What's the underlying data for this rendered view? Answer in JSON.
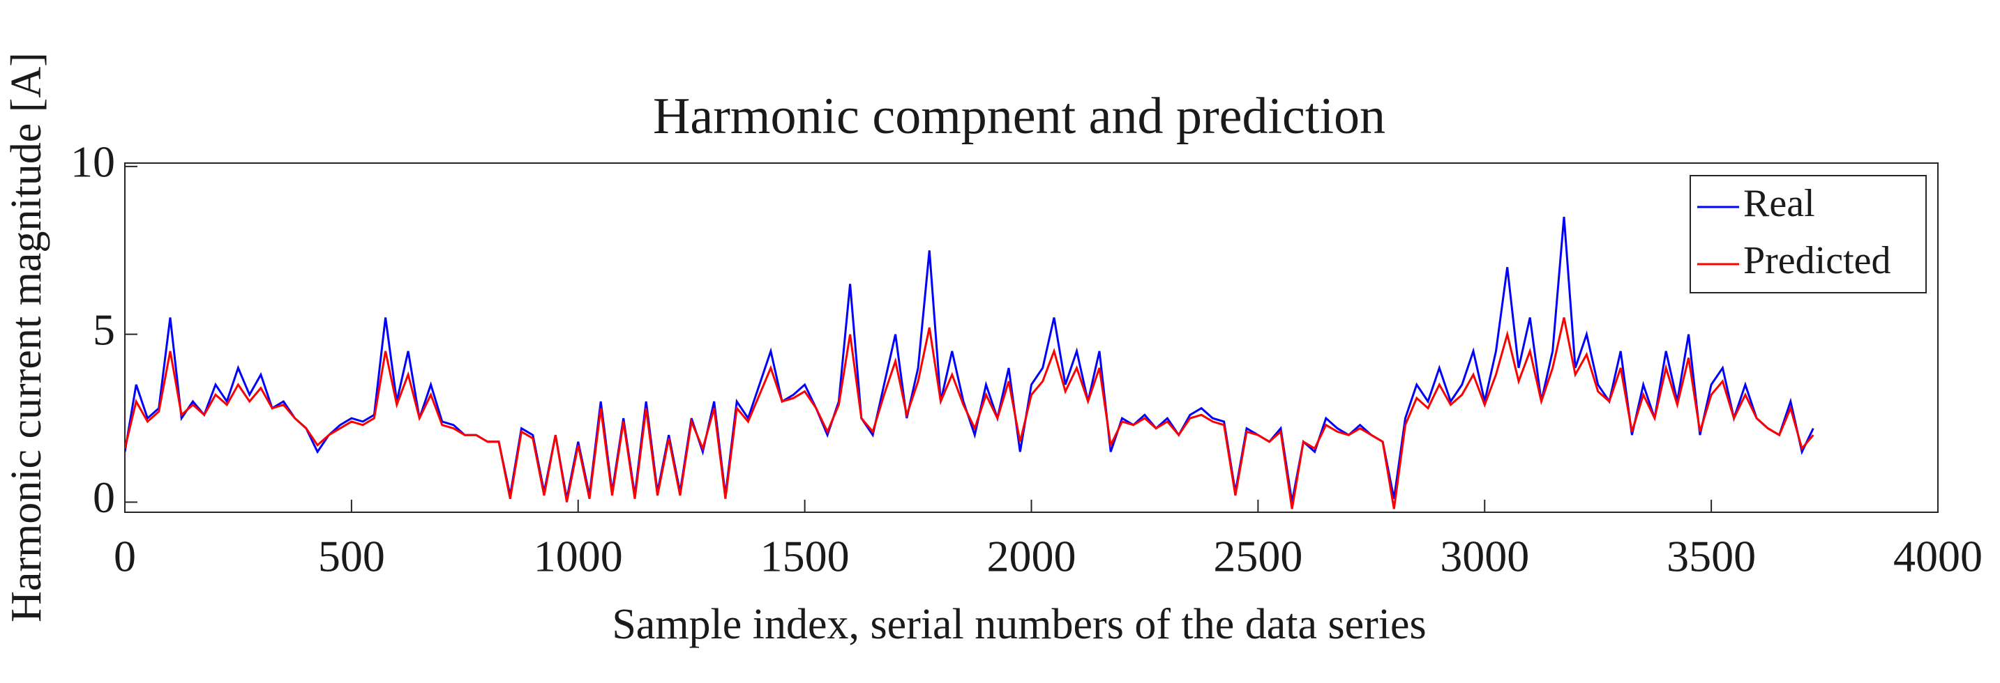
{
  "chart_data": {
    "type": "line",
    "title": "Harmonic compnent and prediction",
    "xlabel": "Sample index, serial numbers of the data series",
    "ylabel": "Harmonic current magnitude [A]",
    "x": [
      0,
      25,
      50,
      75,
      100,
      125,
      150,
      175,
      200,
      225,
      250,
      275,
      300,
      325,
      350,
      375,
      400,
      425,
      450,
      475,
      500,
      525,
      550,
      575,
      600,
      625,
      650,
      675,
      700,
      725,
      750,
      775,
      800,
      825,
      850,
      875,
      900,
      925,
      950,
      975,
      1000,
      1025,
      1050,
      1075,
      1100,
      1125,
      1150,
      1175,
      1200,
      1225,
      1250,
      1275,
      1300,
      1325,
      1350,
      1375,
      1400,
      1425,
      1450,
      1475,
      1500,
      1525,
      1550,
      1575,
      1600,
      1625,
      1650,
      1675,
      1700,
      1725,
      1750,
      1775,
      1800,
      1825,
      1850,
      1875,
      1900,
      1925,
      1950,
      1975,
      2000,
      2025,
      2050,
      2075,
      2100,
      2125,
      2150,
      2175,
      2200,
      2225,
      2250,
      2275,
      2300,
      2325,
      2350,
      2375,
      2400,
      2425,
      2450,
      2475,
      2500,
      2525,
      2550,
      2575,
      2600,
      2625,
      2650,
      2675,
      2700,
      2725,
      2750,
      2775,
      2800,
      2825,
      2850,
      2875,
      2900,
      2925,
      2950,
      2975,
      3000,
      3025,
      3050,
      3075,
      3100,
      3125,
      3150,
      3175,
      3200,
      3225,
      3250,
      3275,
      3300,
      3325,
      3350,
      3375,
      3400,
      3425,
      3450,
      3475,
      3500,
      3525,
      3550,
      3575,
      3600,
      3625,
      3650,
      3675,
      3700,
      3725
    ],
    "series": [
      {
        "name": "Real",
        "color": "#0000ff",
        "values": [
          1.5,
          3.5,
          2.5,
          2.8,
          5.5,
          2.5,
          3.0,
          2.6,
          3.5,
          3.0,
          4.0,
          3.2,
          3.8,
          2.8,
          3.0,
          2.5,
          2.2,
          1.5,
          2.0,
          2.3,
          2.5,
          2.4,
          2.6,
          5.5,
          3.0,
          4.5,
          2.5,
          3.5,
          2.4,
          2.3,
          2.0,
          2.0,
          1.8,
          1.8,
          0.2,
          2.2,
          2.0,
          0.3,
          2.0,
          0.1,
          1.8,
          0.2,
          3.0,
          0.3,
          2.5,
          0.2,
          3.0,
          0.3,
          2.0,
          0.3,
          2.5,
          1.5,
          3.0,
          0.2,
          3.0,
          2.5,
          3.5,
          4.5,
          3.0,
          3.2,
          3.5,
          2.8,
          2.0,
          3.0,
          6.5,
          2.5,
          2.0,
          3.5,
          5.0,
          2.5,
          4.0,
          7.5,
          3.0,
          4.5,
          3.0,
          2.0,
          3.5,
          2.5,
          4.0,
          1.5,
          3.5,
          4.0,
          5.5,
          3.5,
          4.5,
          3.0,
          4.5,
          1.5,
          2.5,
          2.3,
          2.6,
          2.2,
          2.5,
          2.0,
          2.6,
          2.8,
          2.5,
          2.4,
          0.3,
          2.2,
          2.0,
          1.8,
          2.2,
          0.0,
          1.8,
          1.5,
          2.5,
          2.2,
          2.0,
          2.3,
          2.0,
          1.8,
          0.1,
          2.5,
          3.5,
          3.0,
          4.0,
          3.0,
          3.5,
          4.5,
          3.0,
          4.5,
          7.0,
          4.0,
          5.5,
          3.0,
          4.5,
          8.5,
          4.0,
          5.0,
          3.5,
          3.0,
          4.5,
          2.0,
          3.5,
          2.5,
          4.5,
          3.0,
          5.0,
          2.0,
          3.5,
          4.0,
          2.5,
          3.5,
          2.5,
          2.2,
          2.0,
          3.0,
          1.5,
          2.2
        ]
      },
      {
        "name": "Predicted",
        "color": "#ff0000",
        "values": [
          1.6,
          3.0,
          2.4,
          2.7,
          4.5,
          2.6,
          2.9,
          2.6,
          3.2,
          2.9,
          3.5,
          3.0,
          3.4,
          2.8,
          2.9,
          2.5,
          2.2,
          1.7,
          2.0,
          2.2,
          2.4,
          2.3,
          2.5,
          4.5,
          2.9,
          3.8,
          2.5,
          3.2,
          2.3,
          2.2,
          2.0,
          2.0,
          1.8,
          1.8,
          0.1,
          2.1,
          1.9,
          0.2,
          2.0,
          0.0,
          1.7,
          0.1,
          2.8,
          0.2,
          2.4,
          0.1,
          2.8,
          0.2,
          1.9,
          0.2,
          2.4,
          1.6,
          2.8,
          0.1,
          2.8,
          2.4,
          3.2,
          4.0,
          3.0,
          3.1,
          3.3,
          2.8,
          2.1,
          2.9,
          5.0,
          2.5,
          2.1,
          3.2,
          4.2,
          2.6,
          3.6,
          5.2,
          3.0,
          3.8,
          2.9,
          2.2,
          3.2,
          2.5,
          3.6,
          1.8,
          3.2,
          3.6,
          4.5,
          3.3,
          4.0,
          3.0,
          4.0,
          1.7,
          2.4,
          2.3,
          2.5,
          2.2,
          2.4,
          2.0,
          2.5,
          2.6,
          2.4,
          2.3,
          0.2,
          2.1,
          2.0,
          1.8,
          2.1,
          -0.2,
          1.8,
          1.6,
          2.3,
          2.1,
          2.0,
          2.2,
          2.0,
          1.8,
          -0.2,
          2.3,
          3.1,
          2.8,
          3.5,
          2.9,
          3.2,
          3.8,
          2.9,
          3.8,
          5.0,
          3.6,
          4.5,
          3.0,
          4.0,
          5.5,
          3.8,
          4.4,
          3.3,
          3.0,
          4.0,
          2.1,
          3.2,
          2.5,
          4.0,
          2.9,
          4.3,
          2.1,
          3.2,
          3.6,
          2.5,
          3.2,
          2.5,
          2.2,
          2.0,
          2.8,
          1.6,
          2.0
        ]
      }
    ],
    "xlim": [
      0,
      4000
    ],
    "xticks": [
      0,
      500,
      1000,
      1500,
      2000,
      2500,
      3000,
      3500,
      4000
    ],
    "ylim": [
      -0.3,
      10.1
    ],
    "yticks": [
      0,
      5,
      10
    ],
    "legend": "northeast"
  }
}
